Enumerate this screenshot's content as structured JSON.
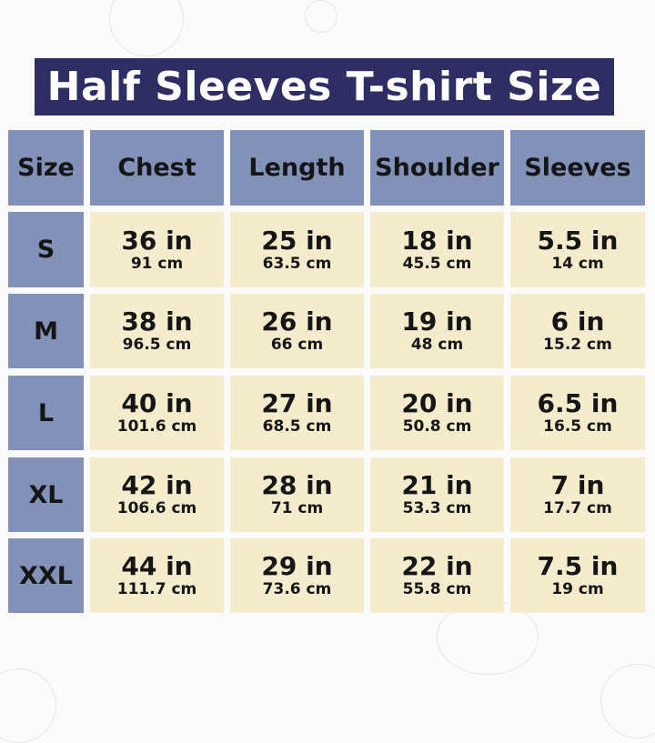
{
  "title": "Half Sleeves T-shirt Size",
  "colors": {
    "title_bg": "#2f2e64",
    "header_bg": "#8191b8",
    "cell_bg": "#f5ebcd"
  },
  "chart_data": {
    "type": "table",
    "columns": [
      "Size",
      "Chest",
      "Length",
      "Shoulder",
      "Sleeves"
    ],
    "rows": [
      {
        "size": "S",
        "values": [
          {
            "in": "36 in",
            "cm": "91 cm"
          },
          {
            "in": "25 in",
            "cm": "63.5 cm"
          },
          {
            "in": "18 in",
            "cm": "45.5 cm"
          },
          {
            "in": "5.5 in",
            "cm": "14 cm"
          }
        ]
      },
      {
        "size": "M",
        "values": [
          {
            "in": "38 in",
            "cm": "96.5 cm"
          },
          {
            "in": "26 in",
            "cm": "66 cm"
          },
          {
            "in": "19 in",
            "cm": "48 cm"
          },
          {
            "in": "6 in",
            "cm": "15.2 cm"
          }
        ]
      },
      {
        "size": "L",
        "values": [
          {
            "in": "40 in",
            "cm": "101.6 cm"
          },
          {
            "in": "27 in",
            "cm": "68.5 cm"
          },
          {
            "in": "20 in",
            "cm": "50.8 cm"
          },
          {
            "in": "6.5 in",
            "cm": "16.5 cm"
          }
        ]
      },
      {
        "size": "XL",
        "values": [
          {
            "in": "42 in",
            "cm": "106.6 cm"
          },
          {
            "in": "28 in",
            "cm": "71 cm"
          },
          {
            "in": "21 in",
            "cm": "53.3 cm"
          },
          {
            "in": "7 in",
            "cm": "17.7 cm"
          }
        ]
      },
      {
        "size": "XXL",
        "values": [
          {
            "in": "44 in",
            "cm": "111.7 cm"
          },
          {
            "in": "29 in",
            "cm": "73.6 cm"
          },
          {
            "in": "22 in",
            "cm": "55.8 cm"
          },
          {
            "in": "7.5 in",
            "cm": "19 cm"
          }
        ]
      }
    ]
  }
}
